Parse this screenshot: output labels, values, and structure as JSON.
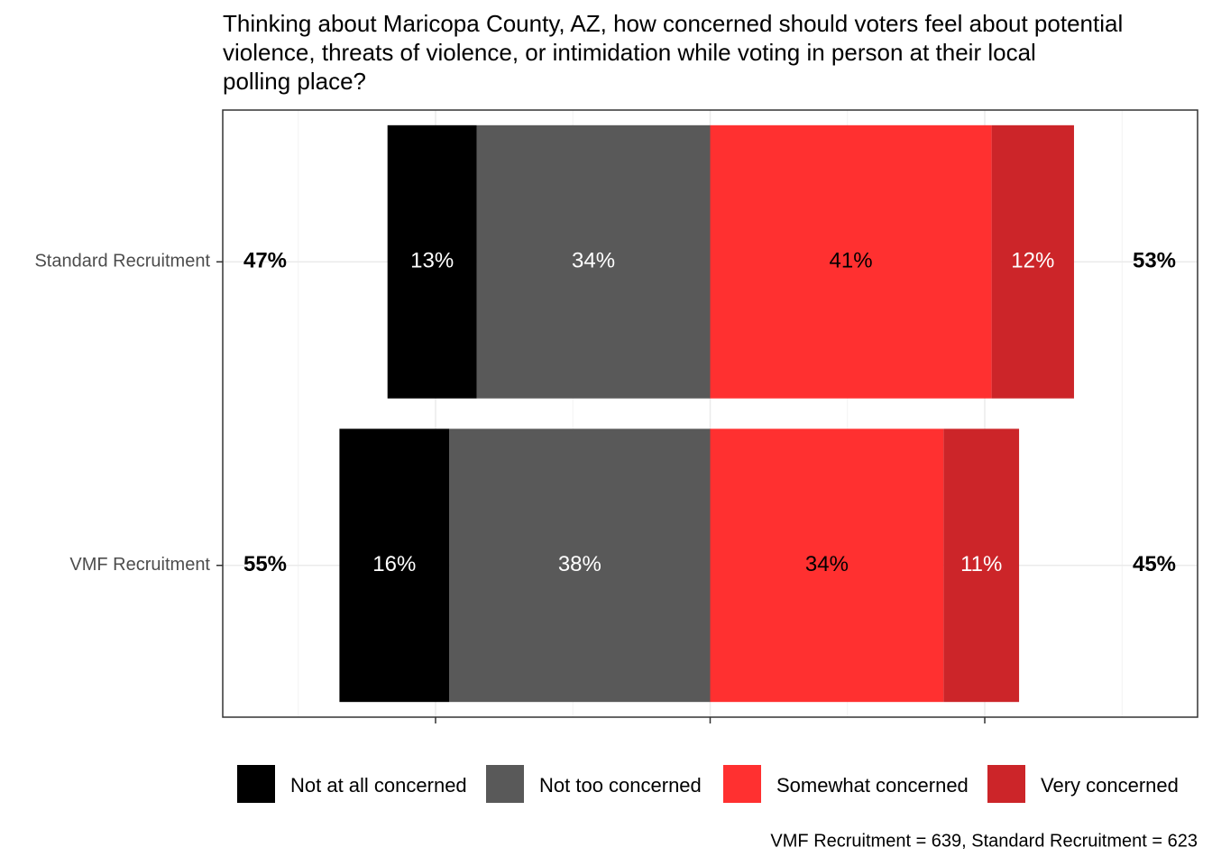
{
  "chart_data": {
    "type": "diverging_bar",
    "title_lines": [
      "Thinking about Maricopa County, AZ, how concerned should voters feel about potential",
      "violence, threats of violence, or intimidation while voting in person at their local",
      "polling place?"
    ],
    "categories": [
      "Standard Recruitment",
      "VMF Recruitment"
    ],
    "series": [
      {
        "name": "Not at all concerned",
        "color": "#000000",
        "label_color": "#ffffff",
        "side": "left",
        "values": [
          13,
          16
        ],
        "value_labels": [
          "13%",
          "16%"
        ]
      },
      {
        "name": "Not too concerned",
        "color": "#595959",
        "label_color": "#ffffff",
        "side": "left",
        "values": [
          34,
          38
        ],
        "value_labels": [
          "34%",
          "38%"
        ]
      },
      {
        "name": "Somewhat concerned",
        "color": "#ff3030",
        "label_color": "#000000",
        "side": "right",
        "values": [
          41,
          34
        ],
        "value_labels": [
          "41%",
          "34%"
        ]
      },
      {
        "name": "Very concerned",
        "color": "#cc2529",
        "label_color": "#ffffff",
        "side": "right",
        "values": [
          12,
          11
        ],
        "value_labels": [
          "12%",
          "11%"
        ]
      }
    ],
    "left_totals": [
      47,
      55
    ],
    "left_total_labels": [
      "47%",
      "55%"
    ],
    "right_totals": [
      53,
      45
    ],
    "right_total_labels": [
      "53%",
      "45%"
    ],
    "xlim": [
      -71,
      71
    ],
    "xticks": [
      -40,
      0,
      40
    ],
    "minor_xticks": [
      -60,
      -20,
      20,
      60
    ],
    "grid": true,
    "legend": "bottom",
    "caption": "VMF Recruitment = 639, Standard Recruitment = 623"
  }
}
